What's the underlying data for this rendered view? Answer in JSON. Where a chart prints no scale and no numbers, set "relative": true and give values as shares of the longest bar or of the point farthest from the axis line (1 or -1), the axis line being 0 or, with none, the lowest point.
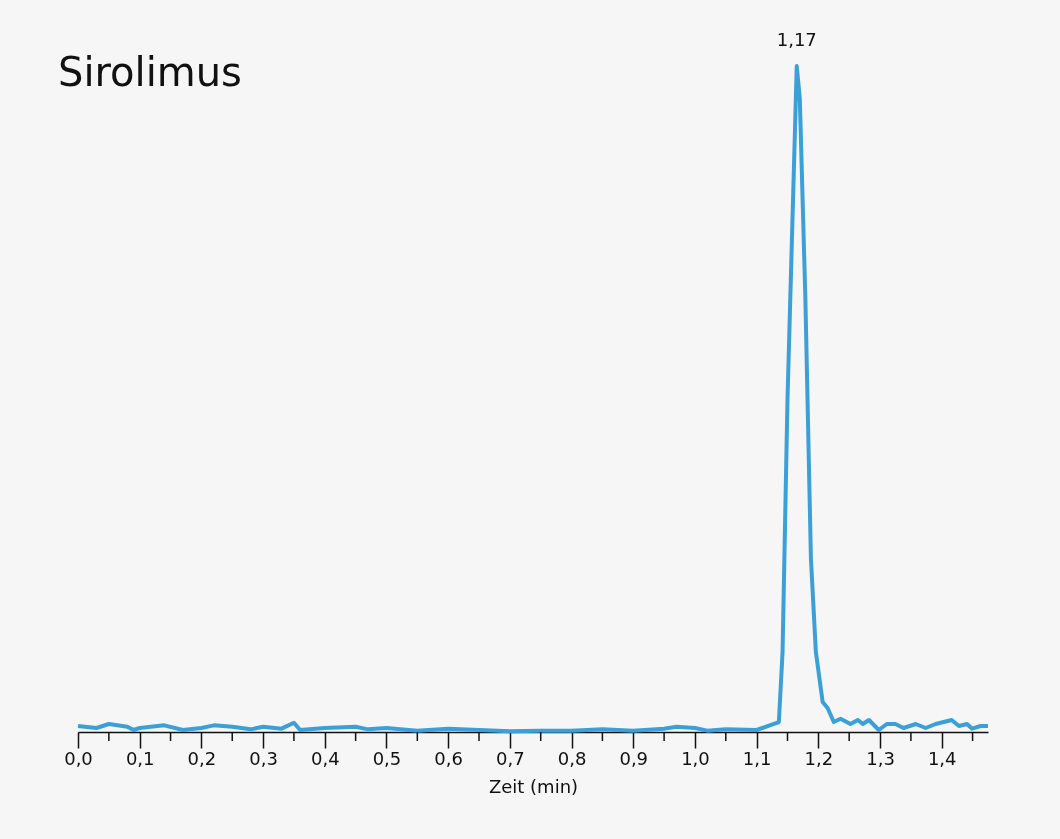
{
  "chart_data": {
    "type": "line",
    "title": "Sirolimus",
    "xlabel": "Zeit (min)",
    "relative": true,
    "xlim": [
      0,
      1.475
    ],
    "xticks": [
      {
        "value": 0,
        "label": "0,0"
      },
      {
        "value": 0.05,
        "label": null
      },
      {
        "value": 0.1,
        "label": "0,1"
      },
      {
        "value": 0.15,
        "label": null
      },
      {
        "value": 0.2,
        "label": "0,2"
      },
      {
        "value": 0.25,
        "label": null
      },
      {
        "value": 0.3,
        "label": "0,3"
      },
      {
        "value": 0.35,
        "label": null
      },
      {
        "value": 0.4,
        "label": "0,4"
      },
      {
        "value": 0.45,
        "label": null
      },
      {
        "value": 0.5,
        "label": "0,5"
      },
      {
        "value": 0.55,
        "label": null
      },
      {
        "value": 0.6,
        "label": "0,6"
      },
      {
        "value": 0.65,
        "label": null
      },
      {
        "value": 0.7,
        "label": "0,7"
      },
      {
        "value": 0.75,
        "label": null
      },
      {
        "value": 0.8,
        "label": "0,8"
      },
      {
        "value": 0.85,
        "label": null
      },
      {
        "value": 0.9,
        "label": "0,9"
      },
      {
        "value": 0.95,
        "label": null
      },
      {
        "value": 1.0,
        "label": "1,0"
      },
      {
        "value": 1.05,
        "label": null
      },
      {
        "value": 1.1,
        "label": "1,1"
      },
      {
        "value": 1.15,
        "label": null
      },
      {
        "value": 1.2,
        "label": "1,2"
      },
      {
        "value": 1.25,
        "label": null
      },
      {
        "value": 1.3,
        "label": "1,3"
      },
      {
        "value": 1.35,
        "label": null
      },
      {
        "value": 1.4,
        "label": "1,4"
      },
      {
        "value": 1.45,
        "label": null
      }
    ],
    "x": [
      0,
      0.03,
      0.05,
      0.08,
      0.09,
      0.1,
      0.14,
      0.17,
      0.2,
      0.22,
      0.25,
      0.28,
      0.3,
      0.33,
      0.35,
      0.36,
      0.4,
      0.45,
      0.47,
      0.5,
      0.55,
      0.6,
      0.65,
      0.7,
      0.75,
      0.8,
      0.85,
      0.9,
      0.95,
      0.97,
      1.0,
      1.02,
      1.05,
      1.1,
      1.136,
      1.142,
      1.15,
      1.165,
      1.17,
      1.179,
      1.188,
      1.196,
      1.207,
      1.215,
      1.225,
      1.236,
      1.252,
      1.264,
      1.272,
      1.282,
      1.298,
      1.311,
      1.325,
      1.338,
      1.358,
      1.374,
      1.39,
      1.416,
      1.428,
      1.441,
      1.449,
      1.463,
      1.475
    ],
    "series": [
      {
        "color": "#3b9fd8",
        "values": [
          0.009,
          0.006,
          0.012,
          0.008,
          0.003,
          0.006,
          0.01,
          0.003,
          0.006,
          0.01,
          0.008,
          0.004,
          0.008,
          0.005,
          0.014,
          0.003,
          0.006,
          0.008,
          0.004,
          0.006,
          0.002,
          0.005,
          0.003,
          0.001,
          0.002,
          0.002,
          0.004,
          0.002,
          0.005,
          0.008,
          0.006,
          0.002,
          0.004,
          0.003,
          0.015,
          0.12,
          0.5,
          1.0,
          0.95,
          0.65,
          0.26,
          0.12,
          0.045,
          0.036,
          0.015,
          0.02,
          0.012,
          0.018,
          0.012,
          0.018,
          0.003,
          0.012,
          0.012,
          0.006,
          0.012,
          0.006,
          0.012,
          0.018,
          0.009,
          0.012,
          0.005,
          0.009,
          0.009
        ]
      }
    ],
    "annotations": [
      {
        "text": "1,17",
        "x": 1.165,
        "y": 1
      }
    ],
    "grid": false,
    "legend": false,
    "marker": "none",
    "line_style": "solid"
  }
}
